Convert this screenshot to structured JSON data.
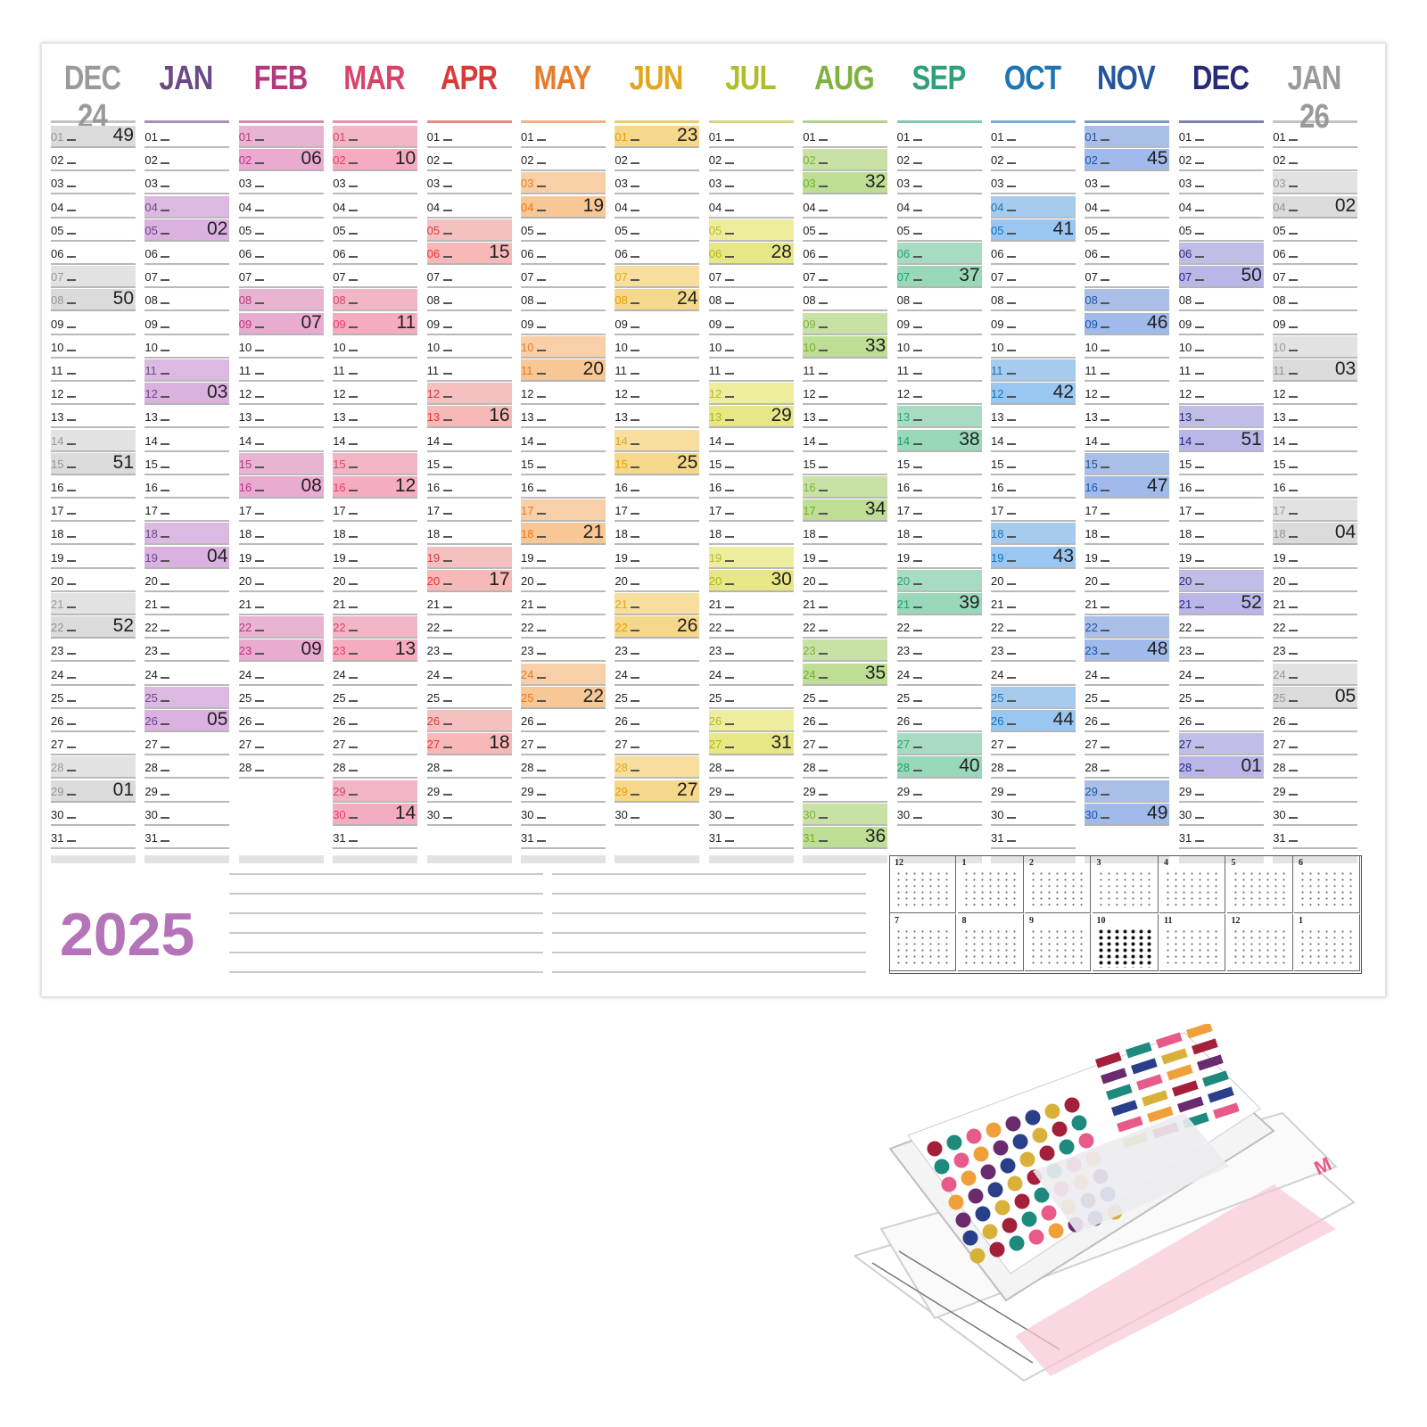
{
  "calendar": {
    "year": "2025",
    "months": [
      {
        "name": "DEC 24",
        "color": "#9a9a9a",
        "days": 31,
        "band": "#e2e2e2",
        "weeks": [
          {
            "day": 1,
            "week": "49"
          },
          {
            "day": 8,
            "week": "50"
          },
          {
            "day": 15,
            "week": "51"
          },
          {
            "day": 22,
            "week": "52"
          },
          {
            "day": 29,
            "week": "01"
          }
        ]
      },
      {
        "name": "JAN",
        "color": "#6b4a86",
        "days": 31,
        "band": "#dcb9e0",
        "weeks": [
          {
            "day": 5,
            "week": "02"
          },
          {
            "day": 12,
            "week": "03"
          },
          {
            "day": 19,
            "week": "04"
          },
          {
            "day": 26,
            "week": "05"
          }
        ]
      },
      {
        "name": "FEB",
        "color": "#b43a7d",
        "days": 28,
        "band": "#e8b4d2",
        "weeks": [
          {
            "day": 2,
            "week": "06"
          },
          {
            "day": 9,
            "week": "07"
          },
          {
            "day": 16,
            "week": "08"
          },
          {
            "day": 23,
            "week": "09"
          }
        ]
      },
      {
        "name": "MAR",
        "color": "#d8436a",
        "days": 31,
        "band": "#f1b5c6",
        "weeks": [
          {
            "day": 2,
            "week": "10"
          },
          {
            "day": 9,
            "week": "11"
          },
          {
            "day": 16,
            "week": "12"
          },
          {
            "day": 23,
            "week": "13"
          },
          {
            "day": 30,
            "week": "14"
          }
        ]
      },
      {
        "name": "APR",
        "color": "#d83a3a",
        "days": 30,
        "band": "#f5c0c0",
        "weeks": [
          {
            "day": 6,
            "week": "15"
          },
          {
            "day": 13,
            "week": "16"
          },
          {
            "day": 20,
            "week": "17"
          },
          {
            "day": 27,
            "week": "18"
          }
        ]
      },
      {
        "name": "MAY",
        "color": "#e77d2b",
        "days": 31,
        "band": "#f8cfa6",
        "weeks": [
          {
            "day": 4,
            "week": "19"
          },
          {
            "day": 11,
            "week": "20"
          },
          {
            "day": 18,
            "week": "21"
          },
          {
            "day": 25,
            "week": "22"
          }
        ]
      },
      {
        "name": "JUN",
        "color": "#e0a81c",
        "days": 30,
        "band": "#f8dfa0",
        "weeks": [
          {
            "day": 1,
            "week": "23"
          },
          {
            "day": 8,
            "week": "24"
          },
          {
            "day": 15,
            "week": "25"
          },
          {
            "day": 22,
            "week": "26"
          },
          {
            "day": 29,
            "week": "27"
          }
        ]
      },
      {
        "name": "JUL",
        "color": "#b2bd2e",
        "days": 31,
        "band": "#eeed9e",
        "weeks": [
          {
            "day": 6,
            "week": "28"
          },
          {
            "day": 13,
            "week": "29"
          },
          {
            "day": 20,
            "week": "30"
          },
          {
            "day": 27,
            "week": "31"
          }
        ]
      },
      {
        "name": "AUG",
        "color": "#7fb13f",
        "days": 31,
        "band": "#c8e2a6",
        "weeks": [
          {
            "day": 3,
            "week": "32"
          },
          {
            "day": 10,
            "week": "33"
          },
          {
            "day": 17,
            "week": "34"
          },
          {
            "day": 24,
            "week": "35"
          },
          {
            "day": 31,
            "week": "36"
          }
        ]
      },
      {
        "name": "SEP",
        "color": "#2fa07a",
        "days": 30,
        "band": "#a8dcc2",
        "weeks": [
          {
            "day": 7,
            "week": "37"
          },
          {
            "day": 14,
            "week": "38"
          },
          {
            "day": 21,
            "week": "39"
          },
          {
            "day": 28,
            "week": "40"
          }
        ]
      },
      {
        "name": "OCT",
        "color": "#1d76b3",
        "days": 31,
        "band": "#a7cbef",
        "weeks": [
          {
            "day": 5,
            "week": "41"
          },
          {
            "day": 12,
            "week": "42"
          },
          {
            "day": 19,
            "week": "43"
          },
          {
            "day": 26,
            "week": "44"
          }
        ]
      },
      {
        "name": "NOV",
        "color": "#24559c",
        "days": 30,
        "band": "#a9bfe8",
        "weeks": [
          {
            "day": 2,
            "week": "45"
          },
          {
            "day": 9,
            "week": "46"
          },
          {
            "day": 16,
            "week": "47"
          },
          {
            "day": 23,
            "week": "48"
          },
          {
            "day": 30,
            "week": "49"
          }
        ]
      },
      {
        "name": "DEC",
        "color": "#262a77",
        "days": 31,
        "band": "#c0bde6",
        "weeks": [
          {
            "day": 7,
            "week": "50"
          },
          {
            "day": 14,
            "week": "51"
          },
          {
            "day": 21,
            "week": "52"
          },
          {
            "day": 28,
            "week": "01"
          }
        ]
      },
      {
        "name": "JAN 26",
        "color": "#9a9a9a",
        "days": 31,
        "band": "#e2e2e2",
        "weeks": [
          {
            "day": 4,
            "week": "02"
          },
          {
            "day": 11,
            "week": "03"
          },
          {
            "day": 18,
            "week": "04"
          },
          {
            "day": 25,
            "week": "05"
          }
        ]
      }
    ],
    "mini_calendars": [
      {
        "month": "12"
      },
      {
        "month": "1"
      },
      {
        "month": "2"
      },
      {
        "month": "3"
      },
      {
        "month": "4"
      },
      {
        "month": "5"
      },
      {
        "month": "6"
      },
      {
        "month": "7"
      },
      {
        "month": "8"
      },
      {
        "month": "9"
      },
      {
        "month": "10",
        "highlight": true
      },
      {
        "month": "11"
      },
      {
        "month": "12"
      },
      {
        "month": "1"
      }
    ]
  },
  "sticker_pack": {
    "icon": "sticker-sheets-photo",
    "accent_colors": [
      "#a31f3a",
      "#1d8a7d",
      "#e85a8a",
      "#f0a03a",
      "#6a2a6e",
      "#2a3f8a",
      "#d8b03a",
      "#ffffff"
    ]
  }
}
